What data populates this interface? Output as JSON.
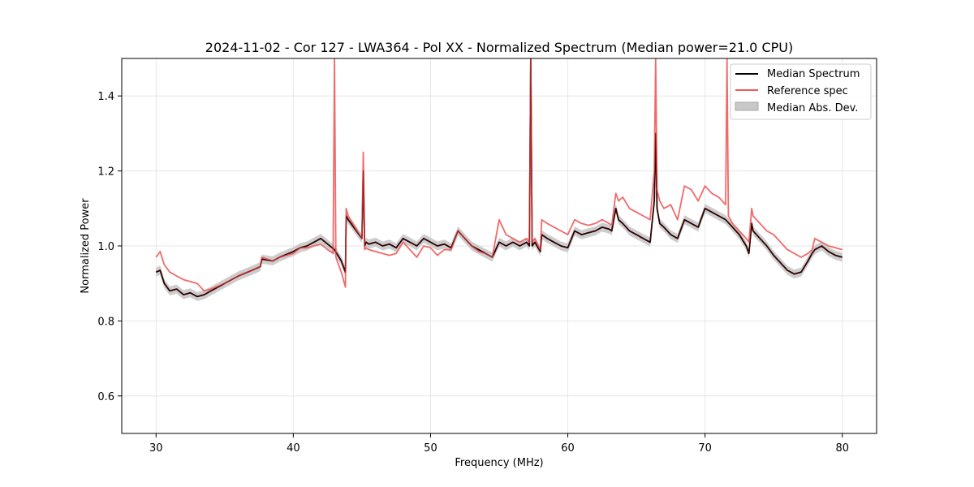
{
  "chart_data": {
    "type": "line",
    "title": "2024-11-02 - Cor 127 - LWA364 - Pol XX - Normalized Spectrum (Median power=21.0 CPU)",
    "xlabel": "Frequency (MHz)",
    "ylabel": "Normalized Power",
    "xlim": [
      27.5,
      82.5
    ],
    "ylim": [
      0.5,
      1.5
    ],
    "xticks": [
      30,
      40,
      50,
      60,
      70,
      80
    ],
    "yticks": [
      0.6,
      0.8,
      1.0,
      1.2,
      1.4
    ],
    "grid": true,
    "legend_position": "top-right",
    "legend": [
      {
        "label": "Median Spectrum",
        "kind": "line",
        "color": "#000000"
      },
      {
        "label": "Reference spec",
        "kind": "line",
        "color": "#f05a5a"
      },
      {
        "label": "Median Abs. Dev.",
        "kind": "patch",
        "color": "#c8c8c8"
      }
    ],
    "series": [
      {
        "name": "Median Spectrum",
        "color": "#000000",
        "x": [
          30.0,
          30.3,
          30.6,
          31.0,
          31.5,
          32.0,
          32.5,
          33.0,
          33.5,
          34.0,
          35.0,
          36.0,
          37.0,
          37.6,
          37.7,
          38.5,
          39.0,
          40.0,
          40.5,
          41.0,
          41.5,
          42.0,
          42.5,
          43.0,
          43.5,
          43.8,
          43.85,
          44.0,
          45.0,
          45.1,
          45.2,
          45.3,
          45.5,
          46.0,
          46.5,
          47.0,
          47.5,
          48.0,
          48.5,
          49.0,
          49.5,
          50.0,
          50.5,
          51.0,
          51.5,
          52.0,
          52.5,
          53.0,
          53.5,
          54.0,
          54.5,
          55.0,
          55.5,
          56.0,
          56.5,
          57.0,
          57.2,
          57.3,
          57.4,
          57.6,
          58.0,
          58.1,
          58.5,
          59.0,
          59.5,
          60.0,
          60.5,
          61.0,
          61.5,
          62.0,
          62.5,
          63.0,
          63.2,
          63.5,
          63.7,
          64.0,
          64.5,
          65.0,
          65.5,
          66.0,
          66.3,
          66.4,
          66.5,
          66.7,
          67.0,
          67.5,
          68.0,
          68.5,
          69.0,
          69.5,
          70.0,
          70.5,
          71.0,
          71.5,
          72.0,
          72.5,
          73.0,
          73.2,
          73.4,
          73.5,
          74.0,
          74.5,
          75.0,
          75.5,
          76.0,
          76.5,
          77.0,
          77.5,
          77.8,
          78.0,
          78.5,
          79.0,
          79.5,
          80.0
        ],
        "y": [
          0.93,
          0.935,
          0.9,
          0.88,
          0.885,
          0.87,
          0.875,
          0.865,
          0.87,
          0.88,
          0.9,
          0.92,
          0.935,
          0.945,
          0.965,
          0.96,
          0.97,
          0.985,
          0.995,
          1.0,
          1.01,
          1.02,
          1.005,
          0.99,
          0.96,
          0.93,
          1.08,
          1.07,
          1.02,
          1.2,
          1.0,
          1.01,
          1.005,
          1.01,
          1.0,
          1.005,
          0.995,
          1.02,
          1.01,
          1.0,
          1.02,
          1.01,
          1.0,
          1.005,
          0.995,
          1.04,
          1.02,
          1.0,
          0.99,
          0.98,
          0.97,
          1.01,
          1.0,
          1.01,
          1.0,
          1.01,
          1.0,
          1.5,
          1.0,
          1.01,
          0.985,
          1.03,
          1.02,
          1.01,
          1.0,
          0.995,
          1.04,
          1.03,
          1.035,
          1.04,
          1.05,
          1.045,
          1.04,
          1.1,
          1.07,
          1.06,
          1.04,
          1.03,
          1.02,
          1.01,
          1.12,
          1.3,
          1.1,
          1.06,
          1.05,
          1.03,
          1.02,
          1.07,
          1.06,
          1.05,
          1.1,
          1.09,
          1.08,
          1.07,
          1.05,
          1.03,
          1.0,
          0.98,
          1.06,
          1.04,
          1.02,
          1.0,
          0.975,
          0.955,
          0.935,
          0.925,
          0.93,
          0.96,
          0.98,
          0.99,
          1.0,
          0.985,
          0.975,
          0.97
        ]
      },
      {
        "name": "Reference spec",
        "color": "#f05a5a",
        "x": [
          30.0,
          30.3,
          30.6,
          31.0,
          31.5,
          32.0,
          32.5,
          33.0,
          33.5,
          34.0,
          35.0,
          36.0,
          37.0,
          37.6,
          37.7,
          38.5,
          39.0,
          40.0,
          40.5,
          41.0,
          41.5,
          42.0,
          42.5,
          42.9,
          43.0,
          43.1,
          43.5,
          43.8,
          43.85,
          44.0,
          45.0,
          45.1,
          45.2,
          45.3,
          45.5,
          46.0,
          46.5,
          47.0,
          47.5,
          48.0,
          48.5,
          49.0,
          49.5,
          50.0,
          50.5,
          51.0,
          51.5,
          52.0,
          52.5,
          53.0,
          53.5,
          54.0,
          54.5,
          55.0,
          55.5,
          56.0,
          56.5,
          57.0,
          57.2,
          57.3,
          57.4,
          57.6,
          58.0,
          58.1,
          58.5,
          59.0,
          59.5,
          60.0,
          60.5,
          61.0,
          61.5,
          62.0,
          62.5,
          63.0,
          63.2,
          63.5,
          63.7,
          64.0,
          64.5,
          65.0,
          65.5,
          66.0,
          66.3,
          66.4,
          66.5,
          66.7,
          67.0,
          67.5,
          68.0,
          68.5,
          69.0,
          69.5,
          70.0,
          70.5,
          71.0,
          71.5,
          71.6,
          71.7,
          72.0,
          72.5,
          73.0,
          73.2,
          73.4,
          73.5,
          74.0,
          74.5,
          75.0,
          75.5,
          76.0,
          76.5,
          77.0,
          77.5,
          77.8,
          78.0,
          78.5,
          79.0,
          79.5,
          80.0
        ],
        "y": [
          0.97,
          0.985,
          0.95,
          0.93,
          0.92,
          0.91,
          0.905,
          0.9,
          0.88,
          0.885,
          0.9,
          0.92,
          0.935,
          0.945,
          0.97,
          0.96,
          0.97,
          0.98,
          0.995,
          0.995,
          1.0,
          1.005,
          0.99,
          0.98,
          1.5,
          0.97,
          0.93,
          0.89,
          1.1,
          1.08,
          1.02,
          1.25,
          0.99,
          0.995,
          0.99,
          0.985,
          0.98,
          0.975,
          0.98,
          1.01,
          0.99,
          0.97,
          1.0,
          0.995,
          0.975,
          0.99,
          0.99,
          1.04,
          1.02,
          1.0,
          0.985,
          0.98,
          0.97,
          1.07,
          1.03,
          1.02,
          1.01,
          1.02,
          1.01,
          1.5,
          1.01,
          1.02,
          0.99,
          1.07,
          1.06,
          1.05,
          1.04,
          1.03,
          1.07,
          1.06,
          1.055,
          1.06,
          1.07,
          1.06,
          1.055,
          1.14,
          1.12,
          1.13,
          1.1,
          1.09,
          1.08,
          1.07,
          1.2,
          1.5,
          1.15,
          1.12,
          1.1,
          1.11,
          1.07,
          1.16,
          1.15,
          1.12,
          1.16,
          1.14,
          1.13,
          1.11,
          1.5,
          1.08,
          1.06,
          1.04,
          1.02,
          1.01,
          1.1,
          1.08,
          1.06,
          1.04,
          1.03,
          1.01,
          0.99,
          0.98,
          0.97,
          0.98,
          0.99,
          1.02,
          1.01,
          1.0,
          0.995,
          0.99
        ]
      }
    ],
    "mad_band": {
      "name": "Median Abs. Dev.",
      "color": "#c8c8c8",
      "half_width": 0.012
    }
  }
}
